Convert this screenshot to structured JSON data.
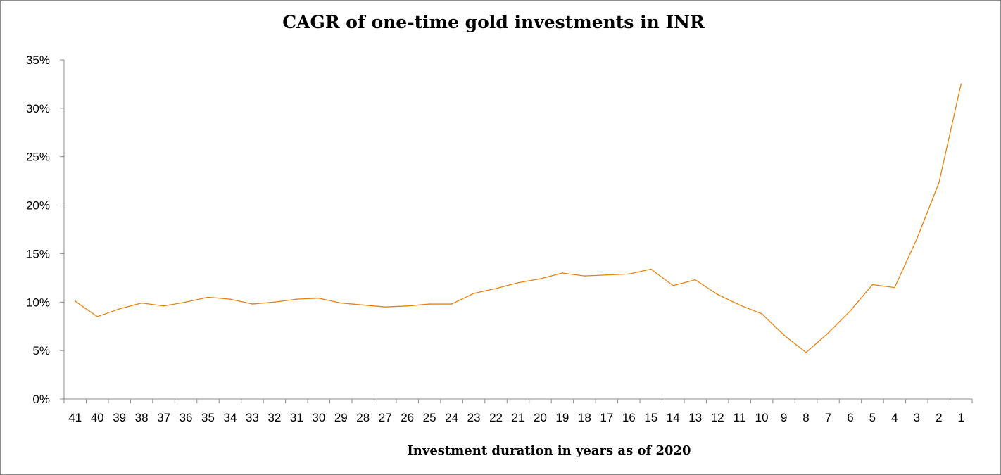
{
  "chart_data": {
    "type": "line",
    "title": "CAGR of one-time gold investments in INR",
    "xlabel": "Investment duration in years as of 2020",
    "ylabel": "",
    "ylim": [
      0,
      35
    ],
    "y_ticks": [
      "0%",
      "5%",
      "10%",
      "15%",
      "20%",
      "25%",
      "30%",
      "35%"
    ],
    "grid": false,
    "legend": "none",
    "categories": [
      "41",
      "40",
      "39",
      "38",
      "37",
      "36",
      "35",
      "34",
      "33",
      "32",
      "31",
      "30",
      "29",
      "28",
      "27",
      "26",
      "25",
      "24",
      "23",
      "22",
      "21",
      "20",
      "19",
      "18",
      "17",
      "16",
      "15",
      "14",
      "13",
      "12",
      "11",
      "10",
      "9",
      "8",
      "7",
      "6",
      "5",
      "4",
      "3",
      "2",
      "1"
    ],
    "series": [
      {
        "color": "#e8820f",
        "values": [
          10.1,
          8.5,
          9.3,
          9.9,
          9.6,
          10.0,
          10.5,
          10.3,
          9.8,
          10.0,
          10.3,
          10.4,
          9.9,
          9.7,
          9.5,
          9.6,
          9.8,
          9.8,
          10.9,
          11.4,
          12.0,
          12.4,
          13.0,
          12.7,
          12.8,
          12.9,
          13.4,
          11.7,
          12.3,
          10.8,
          9.7,
          8.8,
          6.6,
          4.8,
          6.8,
          9.1,
          11.8,
          11.5,
          16.5,
          22.3,
          32.5
        ]
      }
    ]
  }
}
